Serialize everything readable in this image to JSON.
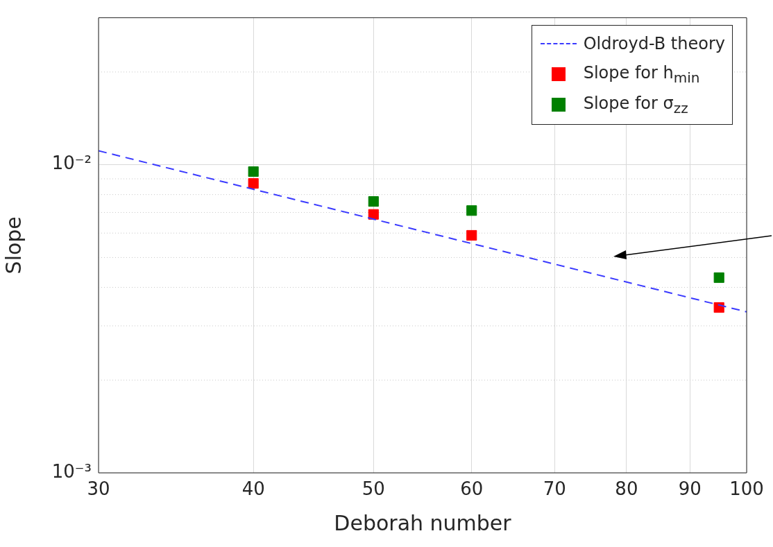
{
  "chart_data": {
    "type": "scatter",
    "xlabel": "Deborah number",
    "ylabel": "Slope",
    "log": "xy",
    "xlim": [
      30,
      100
    ],
    "xticks": [
      30,
      40,
      50,
      60,
      70,
      80,
      90,
      100
    ],
    "ylim": [
      0.001,
      0.03
    ],
    "yticks": [
      {
        "value": 0.001,
        "label": "10⁻³"
      },
      {
        "value": 0.01,
        "label": "10⁻²"
      }
    ],
    "grid": true,
    "legend": "top right",
    "marker": "square",
    "series": [
      {
        "name": "Oldroyd-B theory",
        "type": "line",
        "line_style": "dashed",
        "marker": "none",
        "color": "#3a3aff",
        "x": [
          30,
          100
        ],
        "values": [
          0.0111,
          0.00333
        ]
      },
      {
        "name": "Slope for h$_{min}$",
        "color": "#ff0000",
        "x": [
          40,
          50,
          60,
          95
        ],
        "values": [
          0.0087,
          0.0069,
          0.0059,
          0.00344
        ]
      },
      {
        "name": "Slope for σ$_{zz}$",
        "color": "#008000",
        "x": [
          40,
          50,
          60,
          95
        ],
        "values": [
          0.0095,
          0.0076,
          0.0071,
          0.0043
        ]
      }
    ]
  }
}
